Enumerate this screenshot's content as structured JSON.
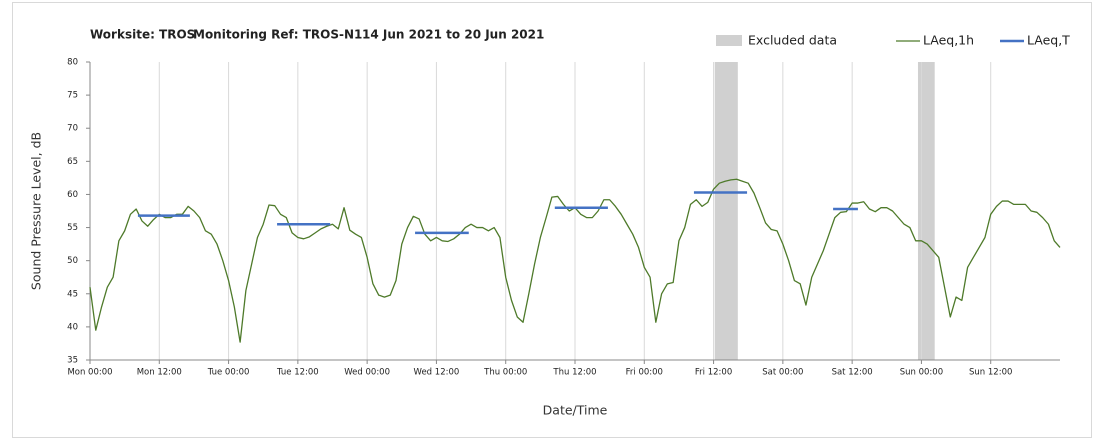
{
  "chart_data": {
    "type": "line",
    "title_parts": [
      "Worksite: TROS",
      "Monitoring Ref: TROS-N1",
      "14 Jun 2021 to 20 Jun 2021"
    ],
    "xlabel": "Date/Time",
    "ylabel": "Sound Pressure Level, dB",
    "xlim": [
      0,
      168
    ],
    "ylim": [
      35,
      80
    ],
    "yticks": [
      35,
      40,
      45,
      50,
      55,
      60,
      65,
      70,
      75,
      80
    ],
    "xticks": [
      {
        "value": 0,
        "label": "Mon 00:00"
      },
      {
        "value": 12,
        "label": "Mon 12:00"
      },
      {
        "value": 24,
        "label": "Tue 00:00"
      },
      {
        "value": 36,
        "label": "Tue 12:00"
      },
      {
        "value": 48,
        "label": "Wed 00:00"
      },
      {
        "value": 60,
        "label": "Wed 12:00"
      },
      {
        "value": 72,
        "label": "Thu 00:00"
      },
      {
        "value": 84,
        "label": "Thu 12:00"
      },
      {
        "value": 96,
        "label": "Fri 00:00"
      },
      {
        "value": 108,
        "label": "Fri 12:00"
      },
      {
        "value": 120,
        "label": "Sat 00:00"
      },
      {
        "value": 132,
        "label": "Sat 12:00"
      },
      {
        "value": 144,
        "label": "Sun 00:00"
      },
      {
        "value": 156,
        "label": "Sun 12:00"
      }
    ],
    "grid": true,
    "legend": "top-right",
    "excluded": {
      "name": "Excluded data",
      "color": "#d0d0d0",
      "ranges": [
        [
          108.2,
          112.2
        ],
        [
          143.4,
          146.3
        ]
      ]
    },
    "x": [
      0,
      1,
      2,
      3,
      4,
      5,
      6,
      7,
      8,
      9,
      10,
      11,
      12,
      13,
      14,
      15,
      16,
      17,
      18,
      19,
      20,
      21,
      22,
      23,
      24,
      25,
      26,
      27,
      28,
      29,
      30,
      31,
      32,
      33,
      34,
      35,
      36,
      37,
      38,
      39,
      40,
      41,
      42,
      43,
      44,
      45,
      46,
      47,
      48,
      49,
      50,
      51,
      52,
      53,
      54,
      55,
      56,
      57,
      58,
      59,
      60,
      61,
      62,
      63,
      64,
      65,
      66,
      67,
      68,
      69,
      70,
      71,
      72,
      73,
      74,
      75,
      76,
      77,
      78,
      79,
      80,
      81,
      82,
      83,
      84,
      85,
      86,
      87,
      88,
      89,
      90,
      91,
      92,
      93,
      94,
      95,
      96,
      97,
      98,
      99,
      100,
      101,
      102,
      103,
      104,
      105,
      106,
      107,
      108,
      109,
      110,
      111,
      112,
      113,
      114,
      115,
      116,
      117,
      118,
      119,
      120,
      121,
      122,
      123,
      124,
      125,
      126,
      127,
      128,
      129,
      130,
      131,
      132,
      133,
      134,
      135,
      136,
      137,
      138,
      139,
      140,
      141,
      142,
      143,
      144,
      145,
      146,
      147,
      148,
      149,
      150,
      151,
      152,
      153,
      154,
      155,
      156,
      157,
      158,
      159,
      160,
      161,
      162,
      163,
      164,
      165,
      166,
      167,
      168
    ],
    "series": [
      {
        "name": "LAeq,1h",
        "color": "#4e7a2a",
        "values": [
          46,
          39.5,
          43,
          46,
          47.5,
          53,
          54.5,
          57,
          57.8,
          56,
          55.2,
          56.2,
          57,
          56.5,
          56.5,
          57,
          57,
          58.2,
          57.5,
          56.5,
          54.5,
          54,
          52.5,
          50,
          47,
          43,
          37.7,
          45.5,
          49.5,
          53.5,
          55.5,
          58.4,
          58.3,
          57,
          56.5,
          54.2,
          53.5,
          53.3,
          53.6,
          54.2,
          54.8,
          55.2,
          55.5,
          54.8,
          58,
          54.6,
          54,
          53.5,
          50.5,
          46.5,
          44.8,
          44.5,
          44.8,
          47,
          52.5,
          55,
          56.7,
          56.3,
          54,
          53,
          53.5,
          53,
          52.9,
          53.3,
          54,
          55,
          55.5,
          55,
          55,
          54.5,
          55,
          53.5,
          47.5,
          44,
          41.5,
          40.7,
          45,
          49.5,
          53.5,
          56.5,
          59.6,
          59.7,
          58.5,
          57.5,
          58,
          57,
          56.5,
          56.5,
          57.5,
          59.2,
          59.2,
          58.2,
          57,
          55.5,
          54,
          52,
          49,
          47.5,
          40.7,
          45,
          46.5,
          46.7,
          53,
          55,
          58.5,
          59.2,
          58.2,
          58.8,
          60.8,
          61.7,
          62,
          62.2,
          62.3,
          62,
          61.7,
          60.2,
          58,
          55.7,
          54.7,
          54.5,
          52.5,
          50,
          47,
          46.5,
          43.3,
          47.5,
          49.5,
          51.5,
          54,
          56.5,
          57.3,
          57.4,
          58.7,
          58.7,
          58.9,
          57.8,
          57.4,
          58,
          58,
          57.5,
          56.5,
          55.5,
          55,
          53,
          53,
          52.5,
          51.5,
          50.5,
          46,
          41.5,
          44.5,
          44,
          49,
          50.5,
          52,
          53.5,
          57,
          58.2,
          59,
          59,
          58.5,
          58.5,
          58.5,
          57.5,
          57.3,
          56.5,
          55.5,
          53,
          52
        ]
      },
      {
        "name": "LAeq,T",
        "color": "#4472c4",
        "periods": [
          {
            "start": 8.3,
            "end": 17.3,
            "value": 56.8
          },
          {
            "start": 32.4,
            "end": 41.6,
            "value": 55.5
          },
          {
            "start": 56.3,
            "end": 65.6,
            "value": 54.2
          },
          {
            "start": 80.5,
            "end": 89.7,
            "value": 58
          },
          {
            "start": 104.6,
            "end": 113.8,
            "value": 60.3
          },
          {
            "start": 128.7,
            "end": 133,
            "value": 57.8
          }
        ]
      }
    ]
  }
}
